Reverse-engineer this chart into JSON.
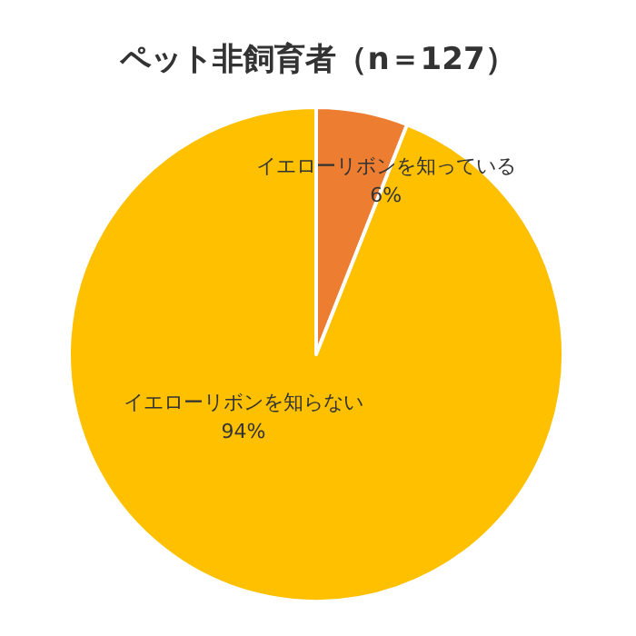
{
  "chart_data": {
    "type": "pie",
    "title": "ペット非飼育者（n＝127）",
    "categories": [
      "イエローリボンを知っている",
      "イエローリボンを知らない"
    ],
    "values": [
      6,
      94
    ],
    "value_labels": [
      "6%",
      "94%"
    ],
    "colors": [
      "#ed7d31",
      "#ffc000"
    ],
    "legend": false
  }
}
